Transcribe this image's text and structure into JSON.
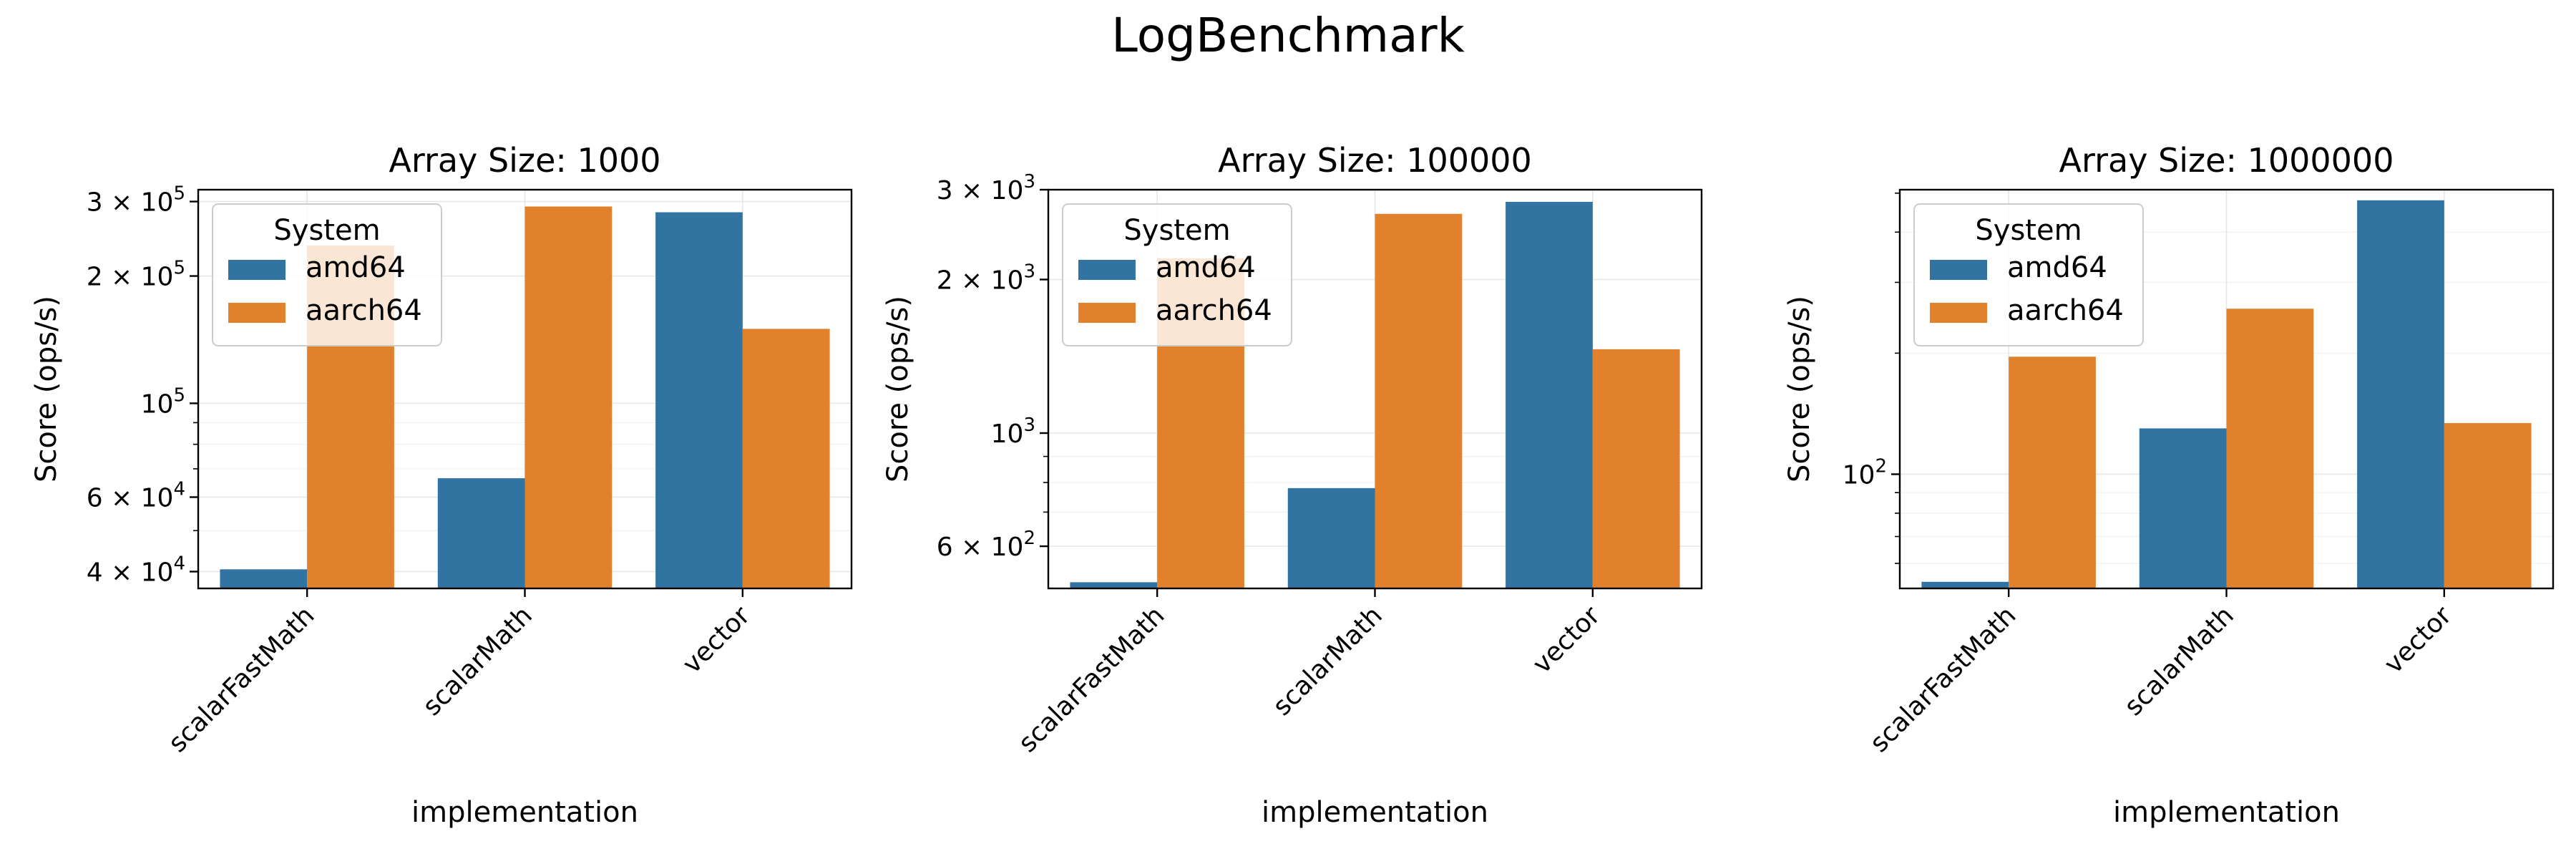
{
  "figure": {
    "title": "LogBenchmark"
  },
  "colors": {
    "amd64": "#3274a1",
    "aarch64": "#e1812c"
  },
  "chart_data": [
    {
      "type": "bar",
      "title": "Array Size: 1000",
      "xlabel": "implementation",
      "ylabel": "Score (ops/s)",
      "yscale": "log",
      "ylim": [
        36500,
        320000
      ],
      "yticks": [
        {
          "value": 40000,
          "base": "4 × 10",
          "exp": "4"
        },
        {
          "value": 60000,
          "base": "6 × 10",
          "exp": "4"
        },
        {
          "value": 100000,
          "base": "10",
          "exp": "5"
        },
        {
          "value": 200000,
          "base": "2 × 10",
          "exp": "5"
        },
        {
          "value": 300000,
          "base": "3 × 10",
          "exp": "5"
        }
      ],
      "minor_ticks": [
        50000,
        70000,
        80000,
        90000
      ],
      "categories": [
        "scalarFastMath",
        "scalarMath",
        "vector"
      ],
      "series": [
        {
          "name": "amd64",
          "values": [
            40500,
            66500,
            283000
          ]
        },
        {
          "name": "aarch64",
          "values": [
            236000,
            292000,
            150000
          ]
        }
      ],
      "legend": {
        "title": "System",
        "position": "upper-left"
      },
      "grid": true
    },
    {
      "type": "bar",
      "title": "Array Size: 100000",
      "xlabel": "implementation",
      "ylabel": "Score (ops/s)",
      "yscale": "log",
      "ylim": [
        496,
        3000
      ],
      "yticks": [
        {
          "value": 600,
          "base": "6 × 10",
          "exp": "2"
        },
        {
          "value": 1000,
          "base": "10",
          "exp": "3"
        },
        {
          "value": 2000,
          "base": "2 × 10",
          "exp": "3"
        },
        {
          "value": 3000,
          "base": "3 × 10",
          "exp": "3"
        }
      ],
      "minor_ticks": [
        700,
        800,
        900
      ],
      "categories": [
        "scalarFastMath",
        "scalarMath",
        "vector"
      ],
      "series": [
        {
          "name": "amd64",
          "values": [
            510,
            780,
            2840
          ]
        },
        {
          "name": "aarch64",
          "values": [
            2200,
            2690,
            1460
          ]
        }
      ],
      "legend": {
        "title": "System",
        "position": "upper-left"
      },
      "grid": true
    },
    {
      "type": "bar",
      "title": "Array Size: 1000000",
      "xlabel": "implementation",
      "ylabel": "Score (ops/s)",
      "yscale": "log",
      "ylim": [
        52,
        510
      ],
      "yticks": [
        {
          "value": 100,
          "base": "10",
          "exp": "2"
        }
      ],
      "minor_ticks": [
        60,
        70,
        80,
        90,
        200,
        300,
        400,
        500
      ],
      "categories": [
        "scalarFastMath",
        "scalarMath",
        "vector"
      ],
      "series": [
        {
          "name": "amd64",
          "values": [
            54,
            130,
            480
          ]
        },
        {
          "name": "aarch64",
          "values": [
            196,
            258,
            134
          ]
        }
      ],
      "legend": {
        "title": "System",
        "position": "upper-left"
      },
      "grid": true
    }
  ]
}
